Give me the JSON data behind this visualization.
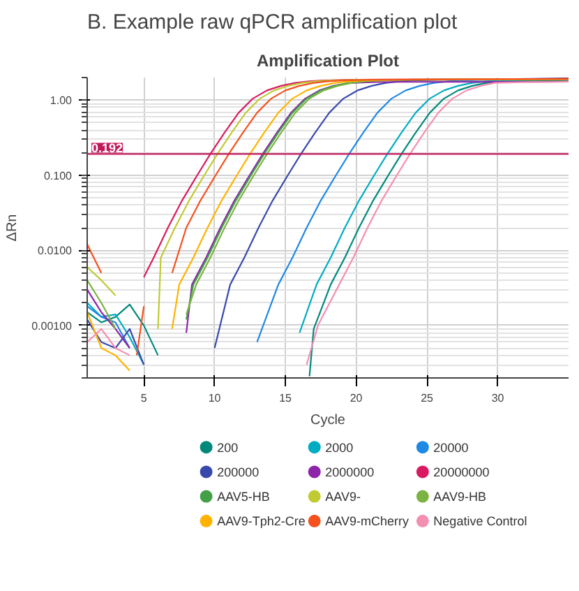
{
  "chart_data": {
    "type": "line",
    "title": "B. Example raw qPCR amplification plot",
    "subtitle": "Amplification Plot",
    "xlabel": "Cycle",
    "ylabel": "ΔRn",
    "log": "y",
    "grid": true,
    "legend": "bottom",
    "marker": "none",
    "line_style": "solid",
    "xlim": [
      1,
      35
    ],
    "xticks": [
      5,
      10,
      15,
      20,
      25,
      30
    ],
    "ylim": [
      0.0002,
      2.0
    ],
    "yticks": [
      {
        "value": 1,
        "label": "1.00"
      },
      {
        "value": 0.1,
        "label": "0.100"
      },
      {
        "value": 0.01,
        "label": "0.0100"
      },
      {
        "value": 0.001,
        "label": "0.00100"
      }
    ],
    "ref_lines": [
      {
        "axis": "y",
        "value": 0.192,
        "label": "0.192",
        "color": "#c2185b"
      }
    ],
    "series": [
      {
        "name": "200",
        "color": "#00897b",
        "x": [
          1,
          2,
          3,
          4,
          5,
          6,
          6.5,
          16.7,
          17.0,
          18.2,
          19.2,
          20.2,
          21.2,
          22.2,
          23.2,
          24.2,
          25.2,
          26.2,
          27.2,
          28.2,
          29.2,
          30.2,
          31.2,
          33.2,
          35
        ],
        "values": [
          0.0015,
          0.0011,
          0.0013,
          0.0019,
          0.001,
          0.0004,
          null,
          0.00021,
          0.0009,
          0.0035,
          0.008,
          0.02,
          0.046,
          0.095,
          0.192,
          0.37,
          0.68,
          1.05,
          1.35,
          1.55,
          1.7,
          1.78,
          1.83,
          1.8,
          1.82
        ]
      },
      {
        "name": "2000",
        "color": "#00acc1",
        "x": [
          1,
          2,
          3,
          4,
          5,
          5.5,
          16.0,
          17.2,
          18.2,
          19.2,
          20.2,
          21.2,
          22.2,
          23.2,
          24.2,
          25.2,
          26.2,
          27.2,
          28.2,
          29.2,
          30.2,
          32.2,
          35
        ],
        "values": [
          0.002,
          0.0013,
          0.0014,
          0.0007,
          0.0003,
          null,
          0.0008,
          0.0035,
          0.008,
          0.02,
          0.046,
          0.095,
          0.192,
          0.37,
          0.68,
          1.05,
          1.35,
          1.55,
          1.7,
          1.78,
          1.83,
          1.87,
          1.9
        ]
      },
      {
        "name": "20000",
        "color": "#1e88e5",
        "x": [
          1,
          2,
          3,
          4,
          4.5,
          13.0,
          14.5,
          15.5,
          16.5,
          17.5,
          18.5,
          19.5,
          20.5,
          21.5,
          22.5,
          23.5,
          24.5,
          25.5,
          26.5,
          27.5,
          29.5,
          35
        ],
        "values": [
          0.0018,
          0.0013,
          0.0011,
          0.0005,
          null,
          0.0006,
          0.0035,
          0.008,
          0.02,
          0.046,
          0.095,
          0.192,
          0.37,
          0.68,
          1.05,
          1.35,
          1.55,
          1.7,
          1.78,
          1.83,
          1.87,
          1.92
        ]
      },
      {
        "name": "200000",
        "color": "#3949ab",
        "x": [
          1,
          2,
          3,
          4,
          5,
          5.5,
          10.0,
          11.1,
          12.1,
          13.1,
          14.1,
          15.1,
          16.1,
          17.1,
          18.1,
          19.1,
          20.1,
          21.1,
          22.1,
          23.1,
          24.1,
          26.1,
          35
        ],
        "values": [
          0.0012,
          0.0006,
          0.0005,
          0.0009,
          0.0003,
          null,
          0.0005,
          0.0035,
          0.008,
          0.02,
          0.046,
          0.095,
          0.192,
          0.37,
          0.68,
          1.05,
          1.35,
          1.55,
          1.7,
          1.78,
          1.83,
          1.87,
          1.95
        ]
      },
      {
        "name": "2000000",
        "color": "#8e24aa",
        "x": [
          1,
          2,
          3,
          4,
          4.5,
          8.0,
          8.4,
          9.4,
          10.4,
          11.4,
          12.4,
          13.4,
          14.4,
          15.4,
          16.4,
          17.4,
          18.4,
          19.4,
          20.4,
          21.4,
          23.4,
          35
        ],
        "values": [
          0.003,
          0.0015,
          0.0009,
          0.0005,
          null,
          0.0008,
          0.0035,
          0.008,
          0.02,
          0.046,
          0.095,
          0.192,
          0.37,
          0.68,
          1.05,
          1.35,
          1.55,
          1.68,
          1.72,
          1.74,
          1.75,
          1.76
        ]
      },
      {
        "name": "20000000",
        "color": "#d81b60",
        "x": [
          5,
          5.7,
          6.7,
          7.7,
          8.7,
          9.7,
          10.7,
          11.7,
          12.7,
          13.7,
          14.7,
          15.7,
          16.7,
          17.7,
          19.7,
          35
        ],
        "values": [
          0.0044,
          0.008,
          0.02,
          0.046,
          0.095,
          0.192,
          0.37,
          0.68,
          1.05,
          1.35,
          1.55,
          1.7,
          1.78,
          1.83,
          1.87,
          1.92
        ]
      },
      {
        "name": "AAV5-HB",
        "color": "#43a047",
        "x": [
          8.0,
          8.5,
          9.5,
          10.5,
          11.5,
          12.5,
          13.5,
          14.5,
          15.5,
          16.5,
          17.5,
          18.5,
          19.5,
          20.5,
          21.5,
          23.5,
          35
        ],
        "values": [
          0.0012,
          0.0035,
          0.008,
          0.02,
          0.046,
          0.095,
          0.192,
          0.37,
          0.68,
          1.05,
          1.35,
          1.55,
          1.7,
          1.78,
          1.83,
          1.87,
          1.9
        ]
      },
      {
        "name": "AAV9-",
        "color": "#c0ca33",
        "x": [
          1,
          2,
          3,
          3.5,
          6.0,
          6.2,
          7.2,
          8.2,
          9.2,
          10.2,
          11.2,
          12.2,
          13.2,
          14.2,
          15.2,
          16.2,
          17.2,
          18.2,
          20.2,
          35
        ],
        "values": [
          0.006,
          0.004,
          0.0025,
          null,
          0.0009,
          0.008,
          0.02,
          0.046,
          0.095,
          0.192,
          0.37,
          0.68,
          1.05,
          1.35,
          1.55,
          1.7,
          1.78,
          1.83,
          1.87,
          1.9
        ]
      },
      {
        "name": "AAV9-HB",
        "color": "#7cb342",
        "x": [
          1,
          2,
          3,
          3.5,
          8.0,
          8.7,
          9.7,
          10.7,
          11.7,
          12.7,
          13.7,
          14.7,
          15.7,
          16.7,
          17.7,
          18.7,
          19.7,
          20.7,
          21.7,
          23.7,
          35
        ],
        "values": [
          0.004,
          0.002,
          0.0009,
          null,
          0.0014,
          0.0035,
          0.008,
          0.02,
          0.046,
          0.095,
          0.192,
          0.37,
          0.68,
          1.05,
          1.35,
          1.55,
          1.7,
          1.78,
          1.83,
          1.87,
          1.9
        ]
      },
      {
        "name": "AAV9-Tph2-Cre",
        "color": "#ffb300",
        "x": [
          1,
          2,
          3,
          4,
          4.5,
          7.0,
          7.5,
          8.5,
          9.5,
          10.5,
          11.5,
          12.5,
          13.5,
          14.5,
          15.5,
          16.5,
          17.5,
          18.5,
          19.5,
          20.5,
          22.5,
          35
        ],
        "values": [
          0.0015,
          0.0005,
          0.0004,
          0.00025,
          null,
          0.0009,
          0.0035,
          0.008,
          0.02,
          0.046,
          0.095,
          0.192,
          0.37,
          0.68,
          1.05,
          1.35,
          1.55,
          1.7,
          1.78,
          1.83,
          1.87,
          1.9
        ]
      },
      {
        "name": "AAV9-mCherry",
        "color": "#f4511e",
        "x": [
          1,
          2,
          2.5,
          4.5,
          5,
          5.5,
          7,
          8,
          9,
          10,
          11,
          12,
          13,
          14,
          15,
          16,
          17,
          18,
          19,
          21,
          35
        ],
        "values": [
          0.012,
          0.005,
          null,
          0.0004,
          0.0018,
          null,
          0.005,
          0.02,
          0.046,
          0.095,
          0.192,
          0.37,
          0.68,
          1.05,
          1.35,
          1.55,
          1.7,
          1.78,
          1.83,
          1.87,
          1.92
        ]
      },
      {
        "name": "Negative Control",
        "color": "#f48fb1",
        "x": [
          1,
          2,
          3,
          4,
          4.5,
          16.5,
          17.3,
          18.8,
          19.8,
          20.8,
          21.8,
          22.8,
          23.8,
          24.8,
          25.8,
          26.8,
          27.8,
          28.8,
          29.8,
          30.8,
          31.8,
          33.8,
          35
        ],
        "values": [
          0.0006,
          0.0009,
          0.0005,
          0.0004,
          null,
          0.0003,
          0.001,
          0.0035,
          0.008,
          0.02,
          0.046,
          0.095,
          0.192,
          0.37,
          0.68,
          1.05,
          1.35,
          1.55,
          1.7,
          1.72,
          1.74,
          1.75,
          1.76
        ]
      }
    ]
  }
}
